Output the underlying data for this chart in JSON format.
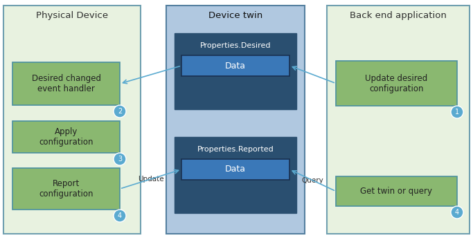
{
  "bg_color": "#ffffff",
  "panel_colors": {
    "physical": "#e8f2e0",
    "physical_border": "#70a0b0",
    "device_twin": "#b0c8e0",
    "device_twin_border": "#5580a0",
    "backend": "#e8f2e0",
    "backend_border": "#70a0b0"
  },
  "dark_box_color": "#2a4f70",
  "dark_box_border": "#2a4f70",
  "data_box_color": "#3a78b8",
  "data_box_border": "#1a3050",
  "green_box_color": "#8ab870",
  "green_box_border": "#4a90a0",
  "circle_color": "#5aaad0",
  "arrow_color": "#5aaad0",
  "panel_titles": {
    "physical": "Physical Device",
    "device_twin": "Device twin",
    "backend": "Back end application"
  },
  "boxes": {
    "props_desired_title": "Properties.Desired",
    "props_desired_data": "Data",
    "props_reported_title": "Properties.Reported",
    "props_reported_data": "Data"
  },
  "labels": {
    "update": "Update",
    "query": "Query"
  },
  "figw": 6.83,
  "figh": 3.47,
  "dpi": 100
}
